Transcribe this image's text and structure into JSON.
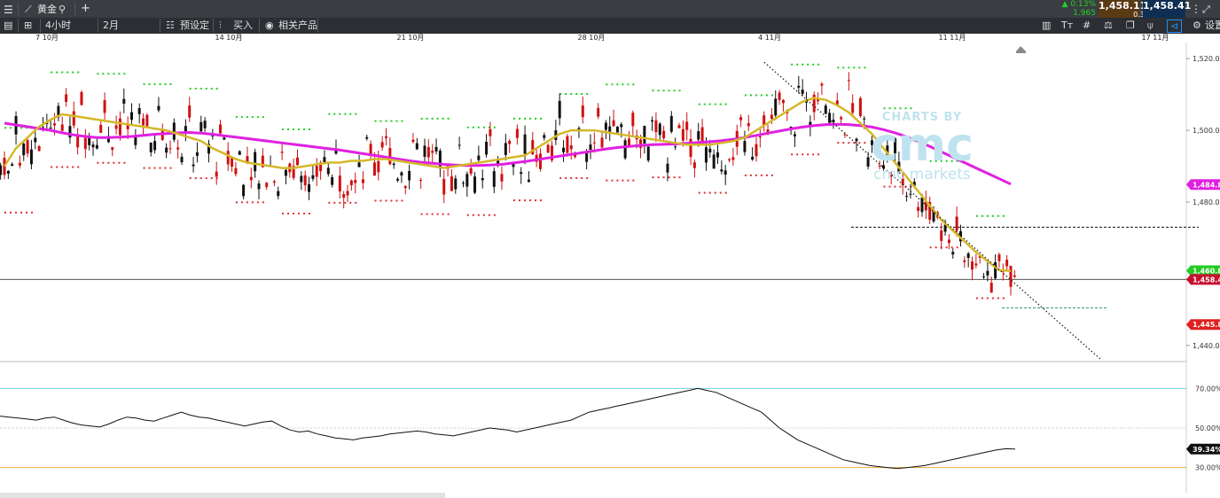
{
  "topbar": {
    "menu_icon": "hamburger-icon",
    "instrument_icon": "line-chart-icon",
    "instrument_name": "黄金",
    "search_icon": "search-icon",
    "add_label": "+",
    "change_pct": "▲ 0.13%",
    "change_abs": "1.965",
    "bid": "1,458.11",
    "ask": "1,458.41",
    "spread": "0.30",
    "expand_icon": "expand-icon"
  },
  "toolbar": {
    "timeframe": "4小时",
    "range": "2月",
    "preset_label": "预设定",
    "buy_label": "买入",
    "related_label": "相关产品",
    "settings_label": "设置"
  },
  "chart_data": {
    "type": "candlestick",
    "instrument": "黄金",
    "x_tick_labels": [
      "7 10月",
      "14 10月",
      "21 10月",
      "28 10月",
      "4 11月",
      "11 11月",
      "17 11月"
    ],
    "price_axis": {
      "ticks": [
        1520,
        1500,
        1480,
        1440
      ],
      "tick_labels": [
        "1,520.00",
        "1,500.00",
        "1,480.00",
        "1,440.00"
      ],
      "range": [
        1436,
        1524
      ]
    },
    "price_tags": [
      {
        "label": "1,484.87",
        "value": 1484.87,
        "color": "#e020e0"
      },
      {
        "label": "1,460.83",
        "value": 1460.83,
        "color": "#22cc22"
      },
      {
        "label": "1,458.41",
        "value": 1458.41,
        "color": "#c8102e"
      },
      {
        "label": "1,445.84",
        "value": 1445.84,
        "color": "#e02020"
      }
    ],
    "current_price": 1458.41,
    "ma_fast_color": "#d4b82a",
    "ma_slow_color": "#e020e0",
    "ma_fast": [
      1490,
      1495,
      1498,
      1501,
      1503,
      1504.5,
      1504,
      1503.5,
      1503,
      1502.5,
      1502,
      1501.5,
      1501,
      1500.5,
      1500,
      1499,
      1498,
      1497,
      1495,
      1493.5,
      1492,
      1491,
      1490.5,
      1490,
      1489.5,
      1489.5,
      1490,
      1490.5,
      1491,
      1491,
      1491.5,
      1491.5,
      1492,
      1492,
      1491.5,
      1491,
      1490.5,
      1490,
      1489.5,
      1490,
      1490.5,
      1491,
      1491.5,
      1492,
      1492.5,
      1493,
      1495,
      1497,
      1499,
      1500,
      1500,
      1500,
      1499.5,
      1499,
      1498.5,
      1498,
      1497.5,
      1497,
      1496.5,
      1496,
      1496,
      1496,
      1496.5,
      1497,
      1498,
      1500,
      1502,
      1504,
      1506,
      1508,
      1509,
      1508.5,
      1507,
      1505,
      1502,
      1499,
      1495,
      1491,
      1487,
      1483,
      1479,
      1475,
      1472,
      1469,
      1466,
      1463.5,
      1461,
      1460.8
    ],
    "ma_slow": [
      1502,
      1501.5,
      1501,
      1500.5,
      1500,
      1499.3,
      1498.7,
      1498.3,
      1498,
      1498,
      1498.1,
      1498.3,
      1498.6,
      1498.9,
      1499.1,
      1499.3,
      1499.4,
      1499.2,
      1498.9,
      1498.5,
      1498.1,
      1497.7,
      1497.3,
      1496.9,
      1496.5,
      1496.1,
      1495.7,
      1495.3,
      1494.9,
      1494.5,
      1494,
      1493.5,
      1493,
      1492.5,
      1492,
      1491.5,
      1491.1,
      1490.8,
      1490.5,
      1490.3,
      1490.2,
      1490.2,
      1490.3,
      1490.5,
      1490.9,
      1491.3,
      1491.8,
      1492.3,
      1492.8,
      1493.3,
      1493.8,
      1494.3,
      1494.8,
      1495.2,
      1495.5,
      1495.8,
      1496,
      1496.1,
      1496.2,
      1496.4,
      1496.6,
      1496.8,
      1497.1,
      1497.5,
      1498,
      1498.6,
      1499.2,
      1499.8,
      1500.4,
      1500.9,
      1501.3,
      1501.6,
      1501.7,
      1501.6,
      1501.3,
      1500.9,
      1500.2,
      1499.3,
      1498.2,
      1496.9,
      1495.5,
      1494,
      1492.5,
      1491,
      1489.5,
      1488,
      1486.5,
      1485
    ],
    "trendline": {
      "from": [
        0,
        1519
      ],
      "to": [
        1,
        1436
      ],
      "style": "dotted"
    },
    "dashed_levels": [
      1473,
      1450.5
    ],
    "rsi": {
      "levels": [
        70,
        50,
        30
      ],
      "level_labels": [
        "70.00%",
        "50.00%",
        "30.00%"
      ],
      "current_label": "39.34%",
      "values": [
        56,
        55.5,
        55,
        54.5,
        54,
        55,
        55.5,
        54,
        52.5,
        51.5,
        51,
        50.5,
        52,
        54,
        55.5,
        55,
        54,
        53.5,
        55,
        56.5,
        58,
        56.5,
        55.5,
        55,
        54,
        53,
        52,
        51,
        52,
        53,
        53.5,
        51,
        49,
        48,
        48.5,
        47,
        46,
        45,
        44.5,
        44,
        45,
        45.5,
        46,
        47,
        47.5,
        48,
        48.5,
        48,
        47,
        46.5,
        46,
        47,
        48,
        49,
        50,
        49.5,
        49,
        48,
        49,
        50,
        51,
        52,
        53,
        54,
        56,
        58,
        59,
        60,
        61,
        62,
        63,
        64,
        65,
        66,
        67,
        68,
        69,
        70,
        69,
        68,
        66,
        64,
        62,
        60,
        58,
        54,
        50,
        47,
        44,
        42,
        40,
        38,
        36,
        34,
        33,
        32,
        31,
        30.5,
        30,
        29.5,
        30,
        30.5,
        31,
        32,
        33,
        34,
        35,
        36,
        37,
        38,
        39,
        39.5,
        39.34
      ]
    }
  }
}
